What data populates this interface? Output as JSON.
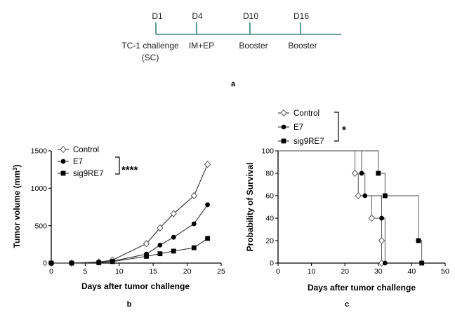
{
  "figure": {
    "panel_a_label": "a",
    "panel_b_label": "b",
    "panel_c_label": "c"
  },
  "timeline": {
    "line_color": "#3b7f86",
    "events": [
      {
        "day": "D1",
        "label": "TC-1 challenge",
        "sublabel": "(SC)"
      },
      {
        "day": "D4",
        "label": "IM+EP",
        "sublabel": ""
      },
      {
        "day": "D10",
        "label": "Booster",
        "sublabel": ""
      },
      {
        "day": "D16",
        "label": "Booster",
        "sublabel": ""
      }
    ]
  },
  "chart_data": [
    {
      "type": "line",
      "panel": "b",
      "xlabel": "Days after tumor challenge",
      "ylabel": "Tumor volume (mm³)",
      "ylabel_main": "Tumor volume (mm",
      "ylabel_sup": "3",
      "ylabel_end": ")",
      "xlim": [
        0,
        25
      ],
      "ylim": [
        0,
        1500
      ],
      "xticks": [
        0,
        5,
        10,
        15,
        20,
        25
      ],
      "yticks": [
        0,
        500,
        1000,
        1500
      ],
      "grid": false,
      "legend_position": "top-left",
      "significance": "****",
      "series": [
        {
          "name": "Control",
          "marker": "open-diamond",
          "x": [
            0,
            3,
            7,
            9,
            14,
            16,
            18,
            21,
            23
          ],
          "y": [
            0,
            0,
            15,
            40,
            260,
            470,
            660,
            900,
            1320
          ]
        },
        {
          "name": "E7",
          "marker": "filled-circle",
          "x": [
            0,
            3,
            7,
            9,
            14,
            16,
            18,
            21,
            23
          ],
          "y": [
            0,
            0,
            10,
            25,
            120,
            240,
            345,
            525,
            780
          ]
        },
        {
          "name": "sig9RE7",
          "marker": "filled-square",
          "x": [
            0,
            3,
            7,
            9,
            14,
            16,
            18,
            21,
            23
          ],
          "y": [
            0,
            0,
            5,
            20,
            90,
            125,
            160,
            205,
            330
          ]
        }
      ]
    },
    {
      "type": "line",
      "panel": "c",
      "step": true,
      "xlabel": "Days after tumor challenge",
      "ylabel": "Probability of Survival",
      "xlim": [
        0,
        50
      ],
      "ylim": [
        0,
        100
      ],
      "xticks": [
        0,
        10,
        20,
        30,
        40,
        50
      ],
      "yticks": [
        0,
        20,
        40,
        60,
        80,
        100
      ],
      "grid": false,
      "legend_position": "top-left",
      "significance": "*",
      "series": [
        {
          "name": "Control",
          "marker": "open-diamond",
          "x": [
            0,
            23,
            24,
            28,
            31,
            31
          ],
          "y": [
            100,
            80,
            60,
            40,
            20,
            0
          ]
        },
        {
          "name": "E7",
          "marker": "filled-circle",
          "x": [
            0,
            25,
            26,
            31,
            32
          ],
          "y": [
            100,
            80,
            60,
            40,
            0
          ]
        },
        {
          "name": "sig9RE7",
          "marker": "filled-square",
          "x": [
            0,
            30,
            32,
            42,
            43
          ],
          "y": [
            100,
            80,
            60,
            20,
            0
          ]
        }
      ]
    }
  ]
}
